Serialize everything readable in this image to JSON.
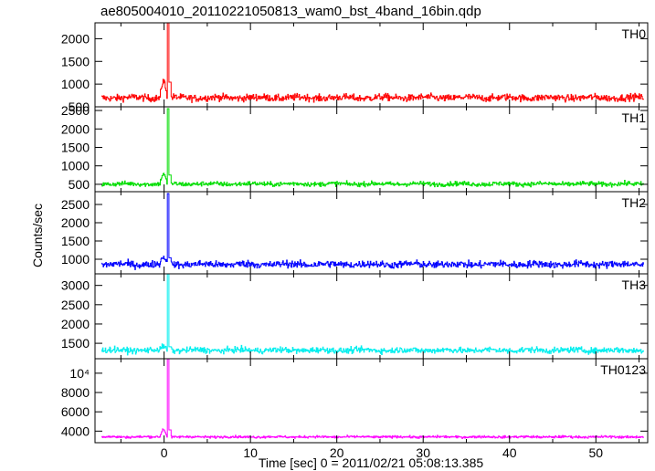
{
  "title": "ae805004010_20110221050813_wam0_bst_4band_16bin.qdp",
  "chart_data": {
    "type": "line",
    "xlabel": "Time [sec] 0 = 2011/02/21 05:08:13.385",
    "ylabel": "Counts/sec",
    "xlim": [
      -8,
      56
    ],
    "xticks": [
      0,
      10,
      20,
      30,
      40,
      50
    ],
    "grid": false,
    "panels": [
      {
        "name": "TH0",
        "color": "#ff0000",
        "ylim": [
          500,
          2350
        ],
        "yticks": [
          {
            "value": 500,
            "label": "500"
          },
          {
            "value": 1000,
            "label": "1000"
          },
          {
            "value": 1500,
            "label": "1500"
          },
          {
            "value": 2000,
            "label": "2000"
          }
        ],
        "baseline": 700,
        "noise": 55,
        "precursor": 1080,
        "peak": 2350
      },
      {
        "name": "TH1",
        "color": "#00dd00",
        "ylim": [
          300,
          2600
        ],
        "yticks": [
          {
            "value": 500,
            "label": "500"
          },
          {
            "value": 1000,
            "label": "1000"
          },
          {
            "value": 1500,
            "label": "1500"
          },
          {
            "value": 2000,
            "label": "2000"
          },
          {
            "value": 2500,
            "label": "2500"
          }
        ],
        "baseline": 510,
        "noise": 45,
        "precursor": 780,
        "peak": 2550
      },
      {
        "name": "TH2",
        "color": "#0000ff",
        "ylim": [
          600,
          2850
        ],
        "yticks": [
          {
            "value": 1000,
            "label": "1000"
          },
          {
            "value": 1500,
            "label": "1500"
          },
          {
            "value": 2000,
            "label": "2000"
          },
          {
            "value": 2500,
            "label": "2500"
          }
        ],
        "baseline": 860,
        "noise": 70,
        "precursor": 1060,
        "peak": 2800
      },
      {
        "name": "TH3",
        "color": "#00eeee",
        "ylim": [
          1100,
          3300
        ],
        "yticks": [
          {
            "value": 1500,
            "label": "1500"
          },
          {
            "value": 2000,
            "label": "2000"
          },
          {
            "value": 2500,
            "label": "2500"
          },
          {
            "value": 3000,
            "label": "3000"
          }
        ],
        "baseline": 1320,
        "noise": 55,
        "precursor": 1420,
        "peak": 3300
      },
      {
        "name": "TH0123",
        "color": "#ff00ff",
        "ylim": [
          2800,
          11500
        ],
        "yticks": [
          {
            "value": 4000,
            "label": "4000"
          },
          {
            "value": 6000,
            "label": "6000"
          },
          {
            "value": 8000,
            "label": "8000"
          },
          {
            "value": 10000,
            "label": "10⁴"
          }
        ],
        "baseline": 3400,
        "noise": 90,
        "precursor": 4200,
        "peak": 11500
      }
    ],
    "burst_time": 0.4
  }
}
